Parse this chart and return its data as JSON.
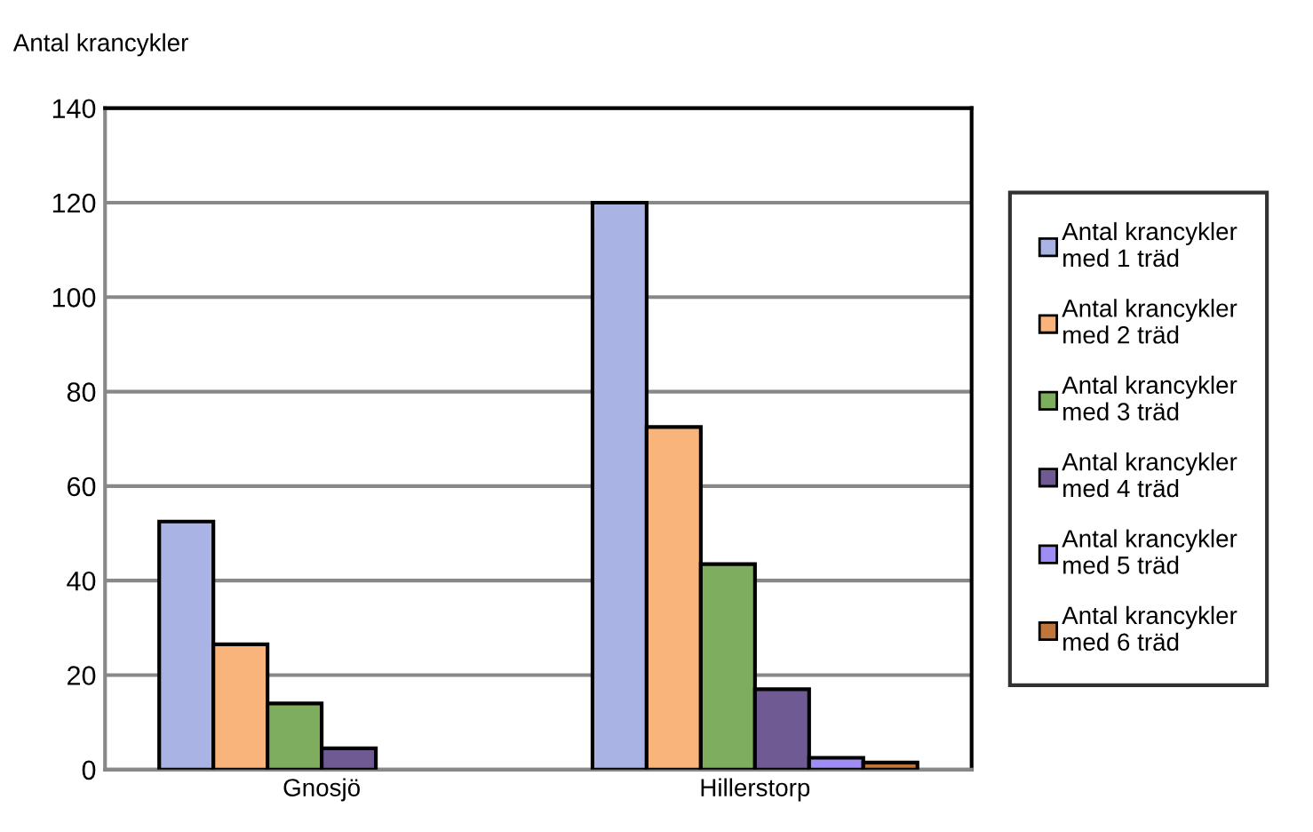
{
  "chart_data": {
    "type": "bar",
    "ylabel": "Antal krancykler",
    "categories": [
      "Gnosjö",
      "Hillerstorp"
    ],
    "series": [
      {
        "name": "Antal krancykler med 1 träd",
        "color": "#a9b4e4",
        "values": [
          52.5,
          120
        ]
      },
      {
        "name": "Antal krancykler med 2 träd",
        "color": "#f9b47c",
        "values": [
          26.5,
          72.5
        ]
      },
      {
        "name": "Antal krancykler med 3 träd",
        "color": "#7fad5e",
        "values": [
          14,
          43.5
        ]
      },
      {
        "name": "Antal krancykler med 4 träd",
        "color": "#6f5a93",
        "values": [
          4.5,
          17
        ]
      },
      {
        "name": "Antal krancykler med 5 träd",
        "color": "#a08cf5",
        "values": [
          null,
          2.5
        ]
      },
      {
        "name": "Antal krancykler med 6 träd",
        "color": "#c0753a",
        "values": [
          null,
          1.5
        ]
      }
    ],
    "ylim": [
      0,
      140
    ],
    "yticks": [
      0,
      20,
      40,
      60,
      80,
      100,
      120,
      140
    ],
    "grid": "y",
    "legend": "right"
  }
}
